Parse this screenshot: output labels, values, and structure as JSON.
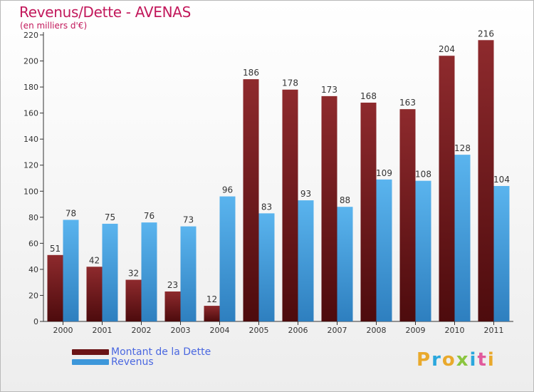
{
  "title": "Revenus/Dette - AVENAS",
  "subtitle": "(en milliers d'€)",
  "logo": {
    "text": "Proxiti",
    "colors": [
      "#e9a92c",
      "#2aa7dd",
      "#e9a92c",
      "#8bc53f",
      "#2aa7dd",
      "#e15a9c",
      "#e9a92c"
    ]
  },
  "chart_data": {
    "type": "bar",
    "categories": [
      "2000",
      "2001",
      "2002",
      "2003",
      "2004",
      "2005",
      "2006",
      "2007",
      "2008",
      "2009",
      "2010",
      "2011"
    ],
    "series": [
      {
        "name": "Montant de la Dette",
        "color": "#7b1f22",
        "values": [
          51,
          42,
          32,
          23,
          12,
          186,
          178,
          173,
          168,
          163,
          204,
          216
        ]
      },
      {
        "name": "Revenus",
        "color": "#4aa3e0",
        "values": [
          78,
          75,
          76,
          73,
          96,
          83,
          93,
          88,
          109,
          108,
          128,
          104
        ]
      }
    ],
    "ylim": [
      0,
      220
    ],
    "yticks": [
      0,
      20,
      40,
      60,
      80,
      100,
      120,
      140,
      160,
      180,
      200,
      220
    ],
    "grid": false,
    "legend": "bottom-left"
  }
}
